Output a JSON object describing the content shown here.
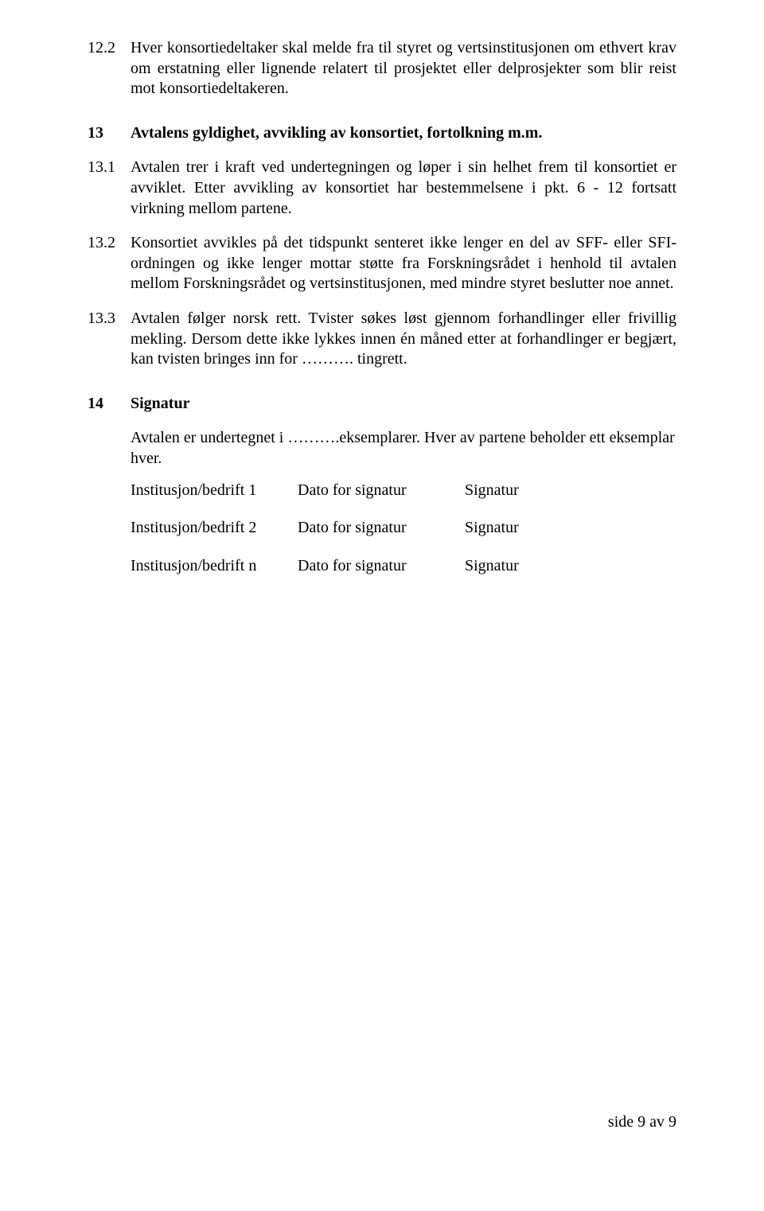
{
  "font": {
    "family": "Times New Roman",
    "body_size_pt": 20,
    "color": "#000000"
  },
  "background_color": "#ffffff",
  "section12_2": {
    "num": "12.2",
    "text": "Hver konsortiedeltaker skal melde fra til styret og vertsinstitusjonen om ethvert krav om erstatning eller lignende relatert til prosjektet eller delprosjekter som blir reist mot konsortiedeltakeren."
  },
  "section13": {
    "num": "13",
    "title": "Avtalens gyldighet, avvikling av konsortiet, fortolkning m.m."
  },
  "section13_1": {
    "num": "13.1",
    "text": "Avtalen trer i kraft ved undertegningen og løper i sin helhet frem til konsortiet er avviklet. Etter avvikling av konsortiet har bestemmelsene i pkt. 6 - 12 fortsatt virkning mellom partene."
  },
  "section13_2": {
    "num": "13.2",
    "text": "Konsortiet avvikles på det tidspunkt senteret ikke lenger en del av SFF- eller SFI-ordningen og ikke lenger mottar støtte fra Forskningsrådet i henhold til avtalen mellom Forskningsrådet og vertsinstitusjonen, med mindre styret beslutter noe annet."
  },
  "section13_3": {
    "num": "13.3",
    "text": "Avtalen følger norsk rett. Tvister søkes løst gjennom forhandlinger eller frivillig mekling. Dersom dette ikke lykkes innen én måned etter at forhandlinger er begjært, kan tvisten bringes inn for ………. tingrett."
  },
  "section14": {
    "num": "14",
    "title": "Signatur",
    "intro": "Avtalen er undertegnet i ……….eksemplarer. Hver av partene beholder ett eksemplar hver.",
    "rows": [
      {
        "c1": "Institusjon/bedrift 1",
        "c2": "Dato for signatur",
        "c3": "Signatur"
      },
      {
        "c1": "Institusjon/bedrift 2",
        "c2": "Dato for signatur",
        "c3": "Signatur"
      },
      {
        "c1": "Institusjon/bedrift n",
        "c2": "Dato for signatur",
        "c3": "Signatur"
      }
    ]
  },
  "footer": "side 9 av 9"
}
